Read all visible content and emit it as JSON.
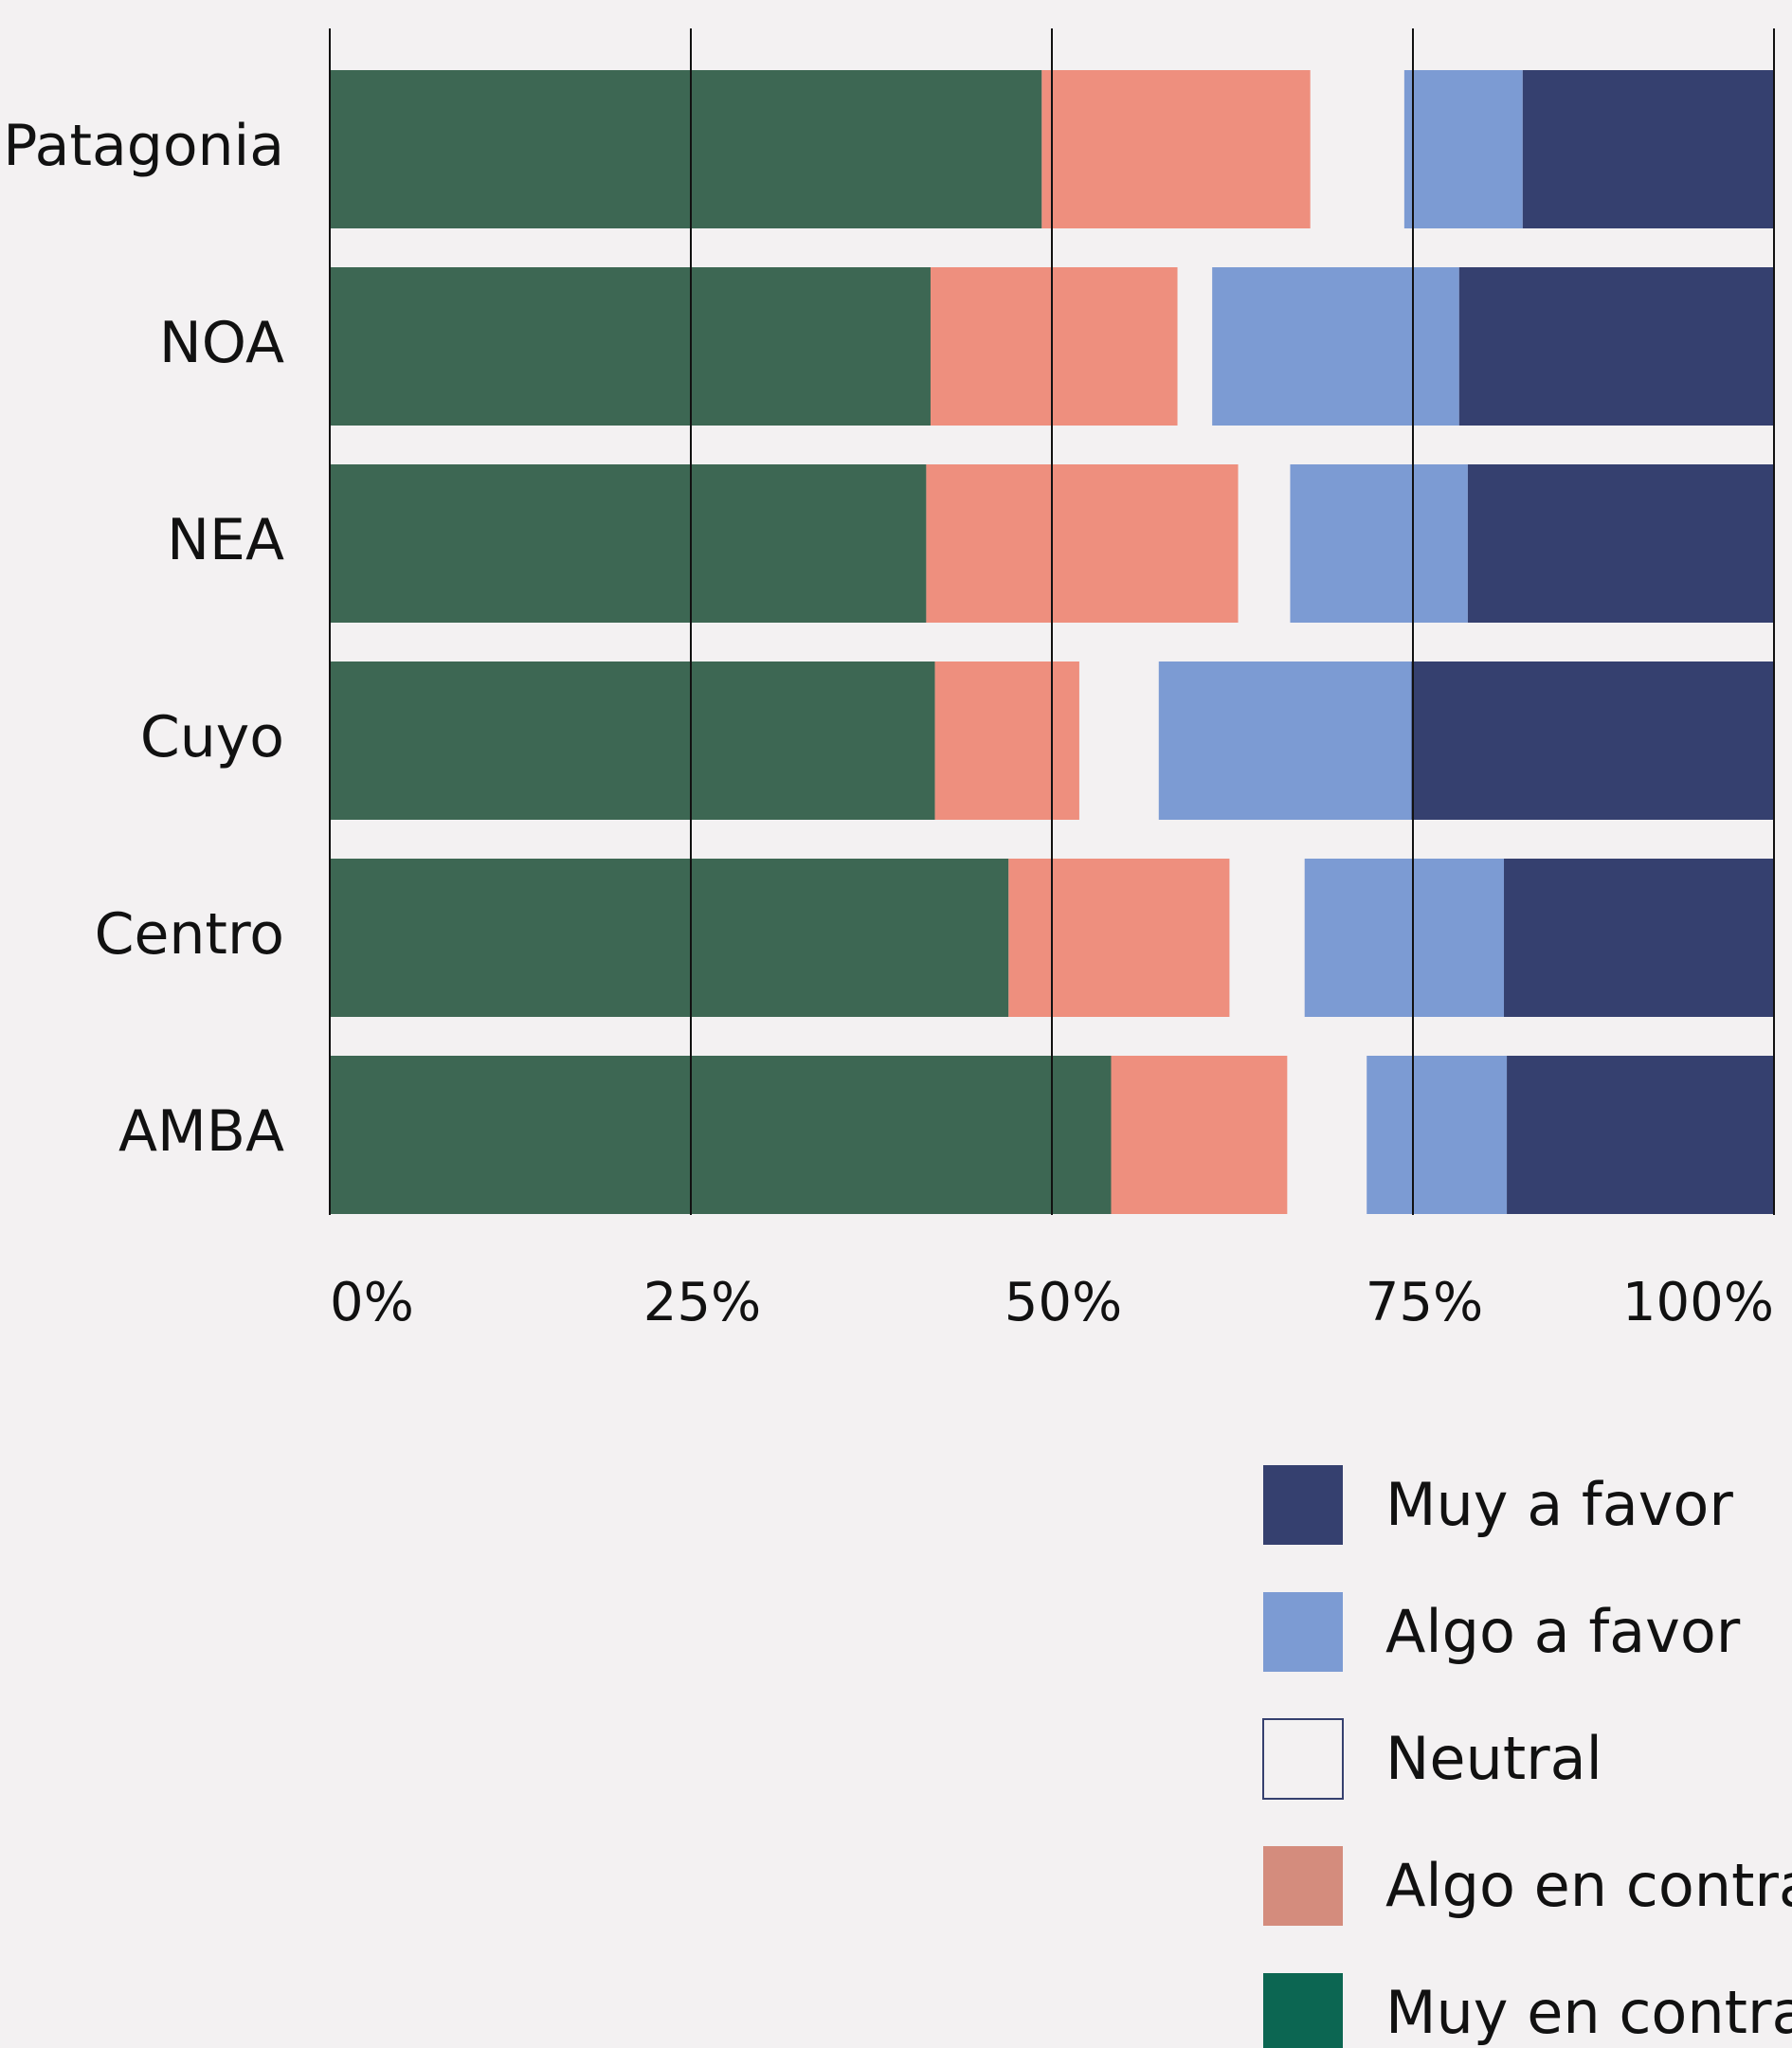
{
  "chart_data": {
    "type": "bar",
    "orientation": "horizontal",
    "stacked": true,
    "normalized": true,
    "categories": [
      "Patagonia",
      "NOA",
      "NEA",
      "Cuyo",
      "Centro",
      "AMBA"
    ],
    "series": [
      {
        "name": "Muy en contra",
        "values": [
          49.3,
          41.6,
          41.3,
          41.9,
          47.0,
          54.1
        ]
      },
      {
        "name": "Algo en contra",
        "values": [
          18.6,
          17.1,
          21.6,
          10.0,
          15.3,
          12.2
        ]
      },
      {
        "name": "Neutral",
        "values": [
          6.5,
          2.4,
          3.6,
          5.5,
          5.2,
          5.5
        ]
      },
      {
        "name": "Algo a favor",
        "values": [
          8.2,
          17.1,
          12.3,
          17.5,
          13.8,
          9.7
        ]
      },
      {
        "name": "Muy a favor",
        "values": [
          17.4,
          21.8,
          21.2,
          25.1,
          18.7,
          18.5
        ]
      }
    ],
    "xlim": [
      0,
      100
    ],
    "xticks": [
      "0%",
      "25%",
      "50%",
      "75%",
      "100%"
    ],
    "grid": "vertical",
    "legend": {
      "position": "bottom-right",
      "order": [
        "Muy a favor",
        "Algo a favor",
        "Neutral",
        "Algo en contra",
        "Muy en contra"
      ]
    },
    "colors": {
      "Muy en contra": "#3d6753",
      "Algo en contra": "#ee8f7e",
      "Neutral": "#f3f1f2",
      "Algo a favor": "#7c9bd3",
      "Muy a favor": "#35406f"
    },
    "legend_colors": {
      "Muy a favor": "#35406f",
      "Algo a favor": "#7c9bd3",
      "Neutral": "#f3f1f2",
      "Algo en contra": "#d48c7d",
      "Muy en contra": "#0c6652"
    },
    "neutral_legend_border": "#35406f"
  }
}
